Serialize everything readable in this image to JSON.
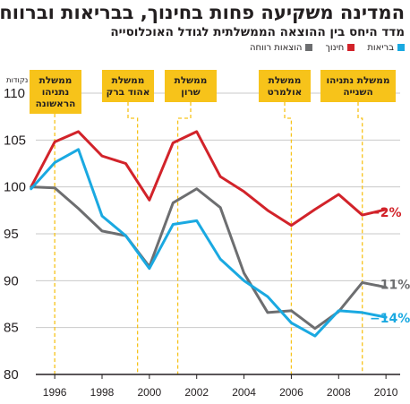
{
  "header": {
    "title": "המדינה משקיעה פחות בחינוך, בבריאות וברווחה",
    "subtitle": "מדד היחס בין ההוצאה הממשלתית לגודל האוכלוסייה"
  },
  "legend": [
    {
      "label": "בריאות",
      "color": "#1aa9e1"
    },
    {
      "label": "חינוך",
      "color": "#d2232a"
    },
    {
      "label": "הוצאות רווחה",
      "color": "#6d6e70"
    }
  ],
  "chart_data": {
    "type": "line",
    "x_domain": [
      1995.2,
      2010.6
    ],
    "ylim": [
      80,
      110
    ],
    "yunit": "נקודות",
    "yticks": [
      80,
      85,
      90,
      95,
      100,
      105,
      110
    ],
    "xticks": [
      1996,
      1998,
      2000,
      2002,
      2004,
      2006,
      2008,
      2010
    ],
    "grid": "horizontal",
    "series": [
      {
        "name": "חינוך",
        "color": "#d2232a",
        "x": [
          1995,
          1996,
          1997,
          1998,
          1999,
          2000,
          2001,
          2002,
          2003,
          2004,
          2005,
          2006,
          2007,
          2008,
          2009,
          2010
        ],
        "y": [
          100,
          104.8,
          105.9,
          103.3,
          102.5,
          98.6,
          104.7,
          105.9,
          101.1,
          99.5,
          97.5,
          95.9,
          97.6,
          99.2,
          97.0,
          97.6
        ],
        "end_label": "−2%"
      },
      {
        "name": "הוצאות רווחה",
        "color": "#6d6e70",
        "x": [
          1995,
          1996,
          1997,
          1998,
          1999,
          2000,
          2001,
          2002,
          2003,
          2004,
          2005,
          2006,
          2007,
          2008,
          2009,
          2010
        ],
        "y": [
          100,
          99.9,
          97.7,
          95.3,
          94.8,
          91.5,
          98.3,
          99.8,
          97.8,
          90.8,
          86.6,
          86.8,
          84.9,
          86.7,
          89.8,
          89.3
        ],
        "end_label": "−11%"
      },
      {
        "name": "בריאות",
        "color": "#1aa9e1",
        "x": [
          1995,
          1996,
          1997,
          1998,
          1999,
          2000,
          2001,
          2002,
          2003,
          2004,
          2005,
          2006,
          2007,
          2008,
          2009,
          2010
        ],
        "y": [
          99.8,
          102.6,
          104.0,
          96.9,
          94.8,
          91.3,
          96.0,
          96.4,
          92.3,
          90.0,
          88.3,
          85.5,
          84.1,
          86.8,
          86.6,
          86.1
        ],
        "end_label": "−14%"
      }
    ],
    "annotations": [
      {
        "lines": [
          "ממשלת",
          "נתניהו",
          "הראשונה"
        ],
        "year": 1996
      },
      {
        "lines": [
          "ממשלת",
          "אהוד ברק"
        ],
        "year": 1999.5
      },
      {
        "lines": [
          "ממשלת",
          "שרון"
        ],
        "year": 2001.2
      },
      {
        "lines": [
          "ממשלת",
          "אולמרט"
        ],
        "year": 2006
      },
      {
        "lines": [
          "ממשלת נתניהו",
          "השנייה"
        ],
        "year": 2009
      }
    ]
  }
}
